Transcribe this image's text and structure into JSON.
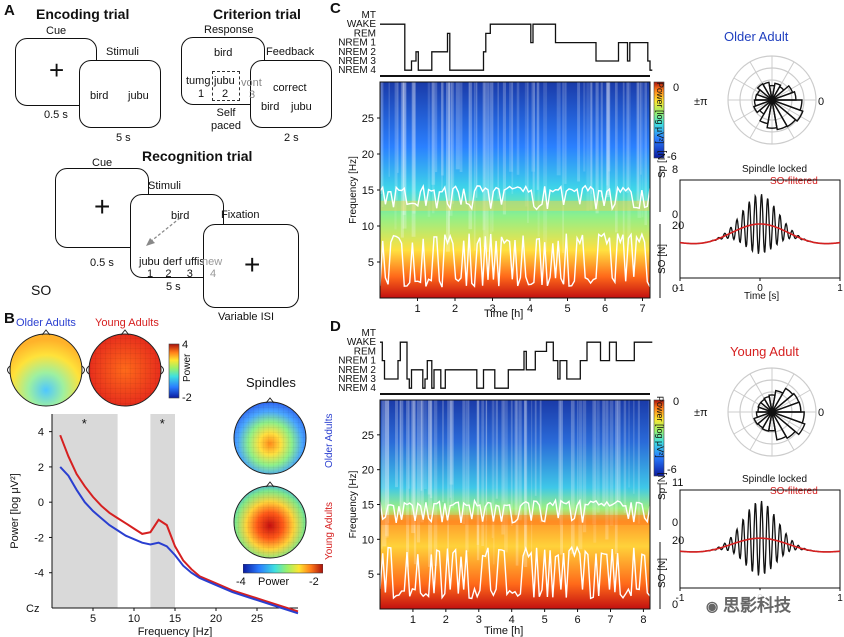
{
  "panel_a": {
    "letter": "A",
    "encoding_title": "Encoding trial",
    "criterion_title": "Criterion trial",
    "recognition_title": "Recognition trial",
    "encoding": {
      "cue": "Cue",
      "stimuli": "Stimuli",
      "word_a": "bird",
      "word_b": "jubu",
      "time_cue": "0.5 s",
      "time_stim": "5 s"
    },
    "criterion": {
      "response": "Response",
      "feedback": "Feedback",
      "cue_word": "bird",
      "choices": [
        "tumg",
        "jubu",
        "vont"
      ],
      "nums": [
        "1",
        "2",
        "3"
      ],
      "correct": "correct",
      "fb_a": "bird",
      "fb_b": "jubu",
      "self_paced": "Self\npaced",
      "time_fb": "2 s"
    },
    "recognition": {
      "cue": "Cue",
      "stimuli": "Stimuli",
      "fixation": "Fixation",
      "cue_word": "bird",
      "choices": "jubu derf uffis",
      "new_word": "new",
      "nums": "1    2     3",
      "new_num": "4",
      "time_cue": "0.5 s",
      "time_stim": "5 s",
      "time_fix": "Variable ISI"
    },
    "so": "SO"
  },
  "panel_b": {
    "letter": "B",
    "older_label": "Older Adults",
    "young_label": "Young Adults",
    "colorbar_title": "Power",
    "colorbar_top": "4",
    "colorbar_bottom": "-2",
    "spindles_title": "Spindles",
    "spindle_older": "Older Adults",
    "spindle_young": "Young Adults",
    "spindle_cb_min": "-4",
    "spindle_cb_label": "Power",
    "spindle_cb_max": "-2",
    "channel": "Cz",
    "star": "*"
  },
  "panel_c": {
    "letter": "C",
    "group": "Older Adult",
    "group_color": "#1f3fbf",
    "time_unit": "Time [h]",
    "polar_left": "±π",
    "polar_right": "0",
    "legend_a": "Spindle locked",
    "legend_b": "SO-filtered",
    "erp_xlabel": "Time [s]",
    "erp_ticks": [
      "-1",
      "0",
      "1"
    ],
    "sp_axis": "Sp [N]",
    "so_axis": "SO [N]",
    "sp_max": "8",
    "sp_min": "0",
    "so_max": "20",
    "so_min": "0",
    "power_label": "Power [log μV²]",
    "cb_top": "0",
    "cb_bottom": "-6"
  },
  "panel_d": {
    "letter": "D",
    "group": "Young Adult",
    "group_color": "#d62020",
    "time_unit": "Time [h]",
    "polar_left": "±π",
    "polar_right": "0",
    "legend_a": "Spindle locked",
    "legend_b": "SO-filtered",
    "erp_ticks": [
      "-1",
      "0",
      "1"
    ],
    "sp_axis": "Sp [N]",
    "so_axis": "SO [N]",
    "sp_max": "11",
    "sp_min": "0",
    "so_max": "20",
    "so_min": "0",
    "power_label": "Power [log μV²]",
    "cb_top": "0",
    "cb_bottom": "-6"
  },
  "hypnogram_stages": [
    "MT",
    "WAKE",
    "REM",
    "NREM 1",
    "NREM 2",
    "NREM 3",
    "NREM 4"
  ],
  "watermark": "思影科技",
  "chart_data": [
    {
      "type": "line",
      "title": "",
      "xlabel": "Frequency [Hz]",
      "ylabel": "Power [log μV²]",
      "x_ticks": [
        5,
        10,
        15,
        20,
        25
      ],
      "y_ticks": [
        4,
        2,
        0,
        -2,
        -4
      ],
      "xlim": [
        0,
        30
      ],
      "ylim": [
        -6,
        5
      ],
      "shaded_regions": [
        [
          0,
          8
        ],
        [
          12,
          15
        ]
      ],
      "x": [
        1,
        2,
        3,
        4,
        5,
        6,
        7,
        8,
        9,
        10,
        11,
        12,
        13,
        14,
        15,
        16,
        17,
        18,
        20,
        22,
        24,
        26,
        28,
        30
      ],
      "series": [
        {
          "name": "Young Adults",
          "color": "#d62020",
          "values": [
            3.8,
            2.6,
            1.6,
            0.9,
            0.3,
            -0.2,
            -0.6,
            -0.9,
            -1.2,
            -1.5,
            -1.8,
            -1.7,
            -1.0,
            -1.3,
            -2.5,
            -3.3,
            -3.8,
            -4.2,
            -4.6,
            -5.0,
            -5.3,
            -5.6,
            -5.9,
            -6.2
          ]
        },
        {
          "name": "Older Adults",
          "color": "#2a3fd0",
          "values": [
            2.0,
            1.5,
            0.7,
            0.0,
            -0.5,
            -0.9,
            -1.3,
            -1.6,
            -1.9,
            -2.1,
            -2.3,
            -2.4,
            -2.3,
            -2.5,
            -3.0,
            -3.6,
            -4.0,
            -4.3,
            -4.7,
            -5.1,
            -5.4,
            -5.7,
            -6.0,
            -6.3
          ]
        }
      ]
    },
    {
      "type": "line",
      "title": "",
      "xlabel": "Time [h]",
      "ylabel": "Frequency [Hz]",
      "x_ticks": [
        1,
        2,
        3,
        4,
        5,
        6,
        7
      ],
      "y_ticks": [
        5,
        10,
        15,
        20,
        25
      ]
    },
    {
      "type": "line",
      "title": "",
      "xlabel": "Time [h]",
      "ylabel": "Frequency [Hz]",
      "x_ticks": [
        1,
        2,
        3,
        4,
        5,
        6,
        7,
        8
      ],
      "y_ticks": [
        5,
        10,
        15,
        20,
        25
      ]
    }
  ]
}
